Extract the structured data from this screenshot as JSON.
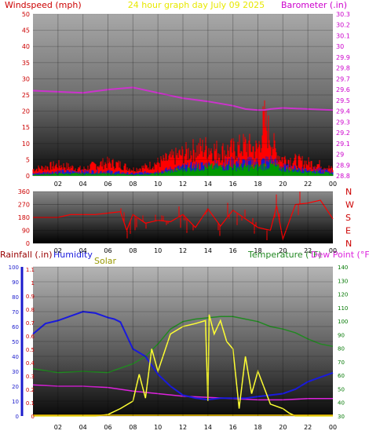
{
  "header": {
    "left_label": "Windspeed (mph)",
    "center_label": "24 hour graph day   July 09 2025",
    "right_label": "Barometer (.in)"
  },
  "colors": {
    "wind_label": "#cc0000",
    "title": "#e8e800",
    "baro_label": "#cc00cc",
    "baro_line": "#cc33cc",
    "gust": "#ff0000",
    "avg_wind": "#1a1acc",
    "wind_green": "#009900",
    "direction": "#ff0000",
    "rain_label": "#990000",
    "humidity": "#1a1add",
    "solar": "#999900",
    "solar_line": "#ffff33",
    "temperature": "#228822",
    "dewpoint": "#dd22dd",
    "axis_left": "#cc0000",
    "axis_humidity": "#1a1acc",
    "axis_right": "#007700"
  },
  "x_ticks": [
    "02",
    "04",
    "06",
    "08",
    "10",
    "12",
    "14",
    "16",
    "18",
    "20",
    "22",
    "00"
  ],
  "wind_panel": {
    "chart_data": {
      "type": "line",
      "x_unit": "hours",
      "ylim_left": [
        0,
        50
      ],
      "ylim_right": [
        28.8,
        30.3
      ],
      "left_ticks": [
        "50",
        "45",
        "40",
        "35",
        "30",
        "25",
        "20",
        "15",
        "10",
        "5",
        "0"
      ],
      "right_ticks": [
        "30.3",
        "30.2",
        "30.1",
        "30",
        "29.9",
        "29.8",
        "29.7",
        "29.6",
        "29.5",
        "29.4",
        "29.3",
        "29.2",
        "29.1",
        "29",
        "28.9",
        "28.8"
      ],
      "barometer": {
        "x": [
          0,
          2,
          4,
          6,
          8,
          10,
          12,
          14,
          16,
          17,
          18,
          18.5,
          19,
          20,
          22,
          24
        ],
        "y": [
          29.59,
          29.58,
          29.57,
          29.6,
          29.62,
          29.57,
          29.52,
          29.49,
          29.45,
          29.42,
          29.41,
          29.41,
          29.42,
          29.43,
          29.42,
          29.41
        ]
      },
      "gust_envelope": {
        "x": [
          0,
          1,
          2,
          3,
          4,
          5,
          6,
          7,
          8,
          9,
          10,
          11,
          12,
          13,
          14,
          15,
          16,
          17,
          18,
          18.5,
          19,
          19.5,
          20,
          21,
          22,
          23,
          24
        ],
        "y": [
          3,
          4,
          5,
          4,
          3,
          5,
          6,
          5,
          3,
          4,
          6,
          8,
          10,
          12,
          13,
          11,
          12,
          14,
          12,
          25,
          18,
          10,
          8,
          7,
          6,
          5,
          3
        ]
      },
      "avg_wind": {
        "x": [
          0,
          2,
          4,
          6,
          8,
          10,
          12,
          14,
          16,
          18,
          19,
          20,
          22,
          24
        ],
        "y": [
          1,
          2,
          2,
          2,
          1,
          2,
          4,
          5,
          6,
          6,
          7,
          4,
          3,
          2
        ]
      },
      "green_wind": {
        "x": [
          0,
          2,
          4,
          6,
          8,
          10,
          12,
          14,
          16,
          18,
          19,
          20,
          22,
          24
        ],
        "y": [
          0.5,
          1,
          1,
          1,
          0.5,
          1,
          3,
          4,
          4,
          4,
          5,
          3,
          2,
          1
        ]
      }
    }
  },
  "direction_panel": {
    "left_ticks": [
      "360",
      "270",
      "180",
      "90",
      "0"
    ],
    "compass": [
      "N",
      "W",
      "S",
      "E",
      "N"
    ],
    "chart_data": {
      "type": "line",
      "x_unit": "hours",
      "ylim": [
        0,
        360
      ],
      "series": [
        {
          "x": [
            0,
            2,
            3,
            5,
            6,
            7,
            7.5,
            8,
            9,
            10,
            11,
            12,
            13,
            14,
            15,
            16,
            17,
            18,
            19,
            19.5,
            20,
            21,
            22,
            23,
            24
          ],
          "y": [
            180,
            180,
            200,
            200,
            210,
            220,
            90,
            200,
            140,
            160,
            150,
            200,
            110,
            240,
            120,
            230,
            170,
            110,
            90,
            260,
            30,
            270,
            280,
            300,
            170
          ]
        }
      ]
    }
  },
  "bottom_panel": {
    "labels": {
      "rain": "Rainfall (.in)",
      "humidity": "Humidity",
      "solar": "Solar",
      "temperature": "Temperature (°F)",
      "dewpoint": "Dew Point (°F)"
    },
    "rain_ticks": [
      "1.1",
      "1",
      "0.9",
      "0.8",
      "0.7",
      "0.6",
      "0.5",
      "0.4",
      "0.3",
      "0.2",
      "0.1",
      "0"
    ],
    "humidity_ticks": [
      "100",
      "90",
      "80",
      "70",
      "60",
      "50",
      "40",
      "30",
      "20",
      "10",
      "0"
    ],
    "temp_ticks": [
      "140",
      "130",
      "120",
      "110",
      "100",
      "90",
      "80",
      "70",
      "60",
      "50",
      "40",
      "30"
    ],
    "chart_data": {
      "type": "line",
      "x_unit": "hours",
      "ylim_humidity": [
        0,
        100
      ],
      "ylim_temp": [
        20,
        140
      ],
      "ylim_rain": [
        0,
        1.15
      ],
      "humidity": {
        "x": [
          0,
          1,
          2,
          3,
          4,
          5,
          6,
          6.5,
          7,
          8,
          9,
          10,
          11,
          12,
          13,
          14,
          15,
          16,
          17,
          18,
          19,
          20,
          21,
          22,
          23,
          24
        ],
        "y": [
          55,
          62,
          64,
          67,
          70,
          69,
          66,
          65,
          63,
          45,
          40,
          28,
          20,
          14,
          12,
          11,
          12,
          12,
          12,
          13,
          14,
          15,
          18,
          23,
          26,
          29
        ]
      },
      "temperature": {
        "x": [
          0,
          2,
          4,
          6,
          8,
          9,
          10,
          11,
          12,
          13,
          14,
          15,
          16,
          17,
          18,
          19,
          20,
          21,
          22,
          23,
          24
        ],
        "y": [
          58,
          55,
          56,
          55,
          62,
          68,
          78,
          90,
          96,
          98,
          99,
          100,
          100,
          98,
          96,
          92,
          90,
          87,
          82,
          78,
          76
        ]
      },
      "dewpoint": {
        "x": [
          0,
          2,
          4,
          6,
          8,
          10,
          12,
          14,
          16,
          18,
          20,
          22,
          24
        ],
        "y": [
          45,
          44,
          44,
          43,
          40,
          38,
          36,
          35,
          34,
          33,
          33,
          34,
          34
        ]
      },
      "solar": {
        "x": [
          0,
          5,
          6,
          7,
          8,
          8.5,
          9,
          9.5,
          10,
          11,
          12,
          13,
          13.8,
          14,
          14.1,
          14.5,
          15,
          15.5,
          16,
          16.5,
          17,
          17.5,
          18,
          19,
          20,
          20.5,
          21,
          24
        ],
        "y": [
          0,
          0,
          1,
          5,
          10,
          28,
          12,
          45,
          30,
          55,
          60,
          62,
          64,
          10,
          68,
          55,
          64,
          50,
          45,
          5,
          40,
          15,
          30,
          8,
          5,
          2,
          0,
          0
        ]
      },
      "rainfall": {
        "total": 0
      }
    }
  }
}
